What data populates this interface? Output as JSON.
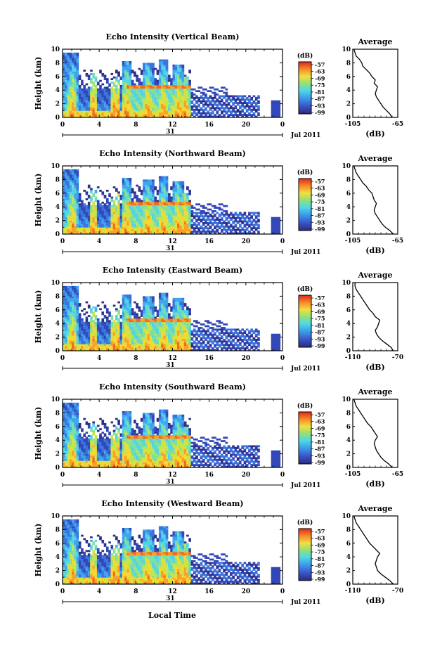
{
  "figure": {
    "time_axis_label": "Local Time",
    "date_day_label": "31",
    "month_year_label": "Jul 2011"
  },
  "chart_data": [
    {
      "type": "heatmap",
      "title": "Echo Intensity (Vertical Beam)",
      "ylabel": "Height (km)",
      "x_ticks": [
        "0",
        "4",
        "8",
        "12",
        "16",
        "20",
        "0"
      ],
      "y_ticks": [
        "0",
        "2",
        "4",
        "6",
        "8",
        "10"
      ],
      "xlim": [
        0,
        24
      ],
      "ylim": [
        0,
        10
      ],
      "colorbar": {
        "unit": "(dB)",
        "ticks": [
          "-57",
          "-63",
          "-69",
          "-75",
          "-81",
          "-87",
          "-93",
          "-99"
        ]
      },
      "profile": {
        "title": "Average",
        "xlabel": "(dB)",
        "x_ticks": [
          "-105",
          "-65"
        ],
        "xlim": [
          -105,
          -65
        ],
        "heights": [
          0,
          0.5,
          1,
          1.5,
          2,
          2.5,
          3,
          3.5,
          4,
          4.5,
          5,
          5.5,
          6,
          6.5,
          7,
          7.5,
          8,
          8.5,
          9,
          9.5,
          10
        ],
        "values": [
          -70,
          -72,
          -75,
          -78,
          -80,
          -82,
          -84,
          -85,
          -84,
          -83,
          -86,
          -85,
          -88,
          -90,
          -93,
          -96,
          -97,
          -99,
          -102,
          -103,
          -104
        ]
      }
    },
    {
      "type": "heatmap",
      "title": "Echo Intensity (Northward Beam)",
      "ylabel": "Height (km)",
      "x_ticks": [
        "0",
        "4",
        "8",
        "12",
        "16",
        "20",
        "0"
      ],
      "y_ticks": [
        "0",
        "2",
        "4",
        "6",
        "8",
        "10"
      ],
      "xlim": [
        0,
        24
      ],
      "ylim": [
        0,
        10
      ],
      "colorbar": {
        "unit": "(dB)",
        "ticks": [
          "-57",
          "-63",
          "-69",
          "-75",
          "-81",
          "-87",
          "-93",
          "-99"
        ]
      },
      "profile": {
        "title": "Average",
        "xlabel": "(dB)",
        "x_ticks": [
          "-105",
          "-65"
        ],
        "xlim": [
          -105,
          -65
        ],
        "heights": [
          0,
          0.5,
          1,
          1.5,
          2,
          2.5,
          3,
          3.5,
          4,
          4.5,
          5,
          5.5,
          6,
          6.5,
          7,
          7.5,
          8,
          8.5,
          9,
          9.5,
          10
        ],
        "values": [
          -69,
          -72,
          -76,
          -79,
          -81,
          -83,
          -85,
          -86,
          -85,
          -84,
          -86,
          -87,
          -88,
          -91,
          -93,
          -96,
          -98,
          -100,
          -102,
          -103,
          -104
        ]
      }
    },
    {
      "type": "heatmap",
      "title": "Echo Intensity (Eastward Beam)",
      "ylabel": "Height (km)",
      "x_ticks": [
        "0",
        "4",
        "8",
        "12",
        "16",
        "20",
        "0"
      ],
      "y_ticks": [
        "0",
        "2",
        "4",
        "6",
        "8",
        "10"
      ],
      "xlim": [
        0,
        24
      ],
      "ylim": [
        0,
        10
      ],
      "colorbar": {
        "unit": "(dB)",
        "ticks": [
          "-57",
          "-63",
          "-69",
          "-75",
          "-81",
          "-87",
          "-93",
          "-99"
        ]
      },
      "profile": {
        "title": "Average",
        "xlabel": "(dB)",
        "x_ticks": [
          "-110",
          "-70"
        ],
        "xlim": [
          -110,
          -70
        ],
        "heights": [
          0,
          0.5,
          1,
          1.5,
          2,
          2.5,
          3,
          3.5,
          4,
          4.5,
          5,
          5.5,
          6,
          6.5,
          7,
          7.5,
          8,
          8.5,
          9,
          9.5,
          10
        ],
        "values": [
          -74,
          -76,
          -80,
          -84,
          -87,
          -89,
          -90,
          -88,
          -87,
          -86,
          -90,
          -92,
          -95,
          -97,
          -99,
          -101,
          -103,
          -105,
          -107,
          -108,
          -108
        ]
      }
    },
    {
      "type": "heatmap",
      "title": "Echo Intensity (Southward Beam)",
      "ylabel": "Height (km)",
      "x_ticks": [
        "0",
        "4",
        "8",
        "12",
        "16",
        "20",
        "0"
      ],
      "y_ticks": [
        "0",
        "2",
        "4",
        "6",
        "8",
        "10"
      ],
      "xlim": [
        0,
        24
      ],
      "ylim": [
        0,
        10
      ],
      "colorbar": {
        "unit": "(dB)",
        "ticks": [
          "-57",
          "-63",
          "-69",
          "-75",
          "-81",
          "-87",
          "-93",
          "-99"
        ]
      },
      "profile": {
        "title": "Average",
        "xlabel": "(dB)",
        "x_ticks": [
          "-105",
          "-65"
        ],
        "xlim": [
          -105,
          -65
        ],
        "heights": [
          0,
          0.5,
          1,
          1.5,
          2,
          2.5,
          3,
          3.5,
          4,
          4.5,
          5,
          5.5,
          6,
          6.5,
          7,
          7.5,
          8,
          8.5,
          9,
          9.5,
          10
        ],
        "values": [
          -70,
          -73,
          -77,
          -80,
          -82,
          -84,
          -85,
          -86,
          -85,
          -83,
          -85,
          -87,
          -89,
          -92,
          -94,
          -96,
          -98,
          -100,
          -102,
          -103,
          -104
        ]
      }
    },
    {
      "type": "heatmap",
      "title": "Echo Intensity (Westward Beam)",
      "ylabel": "Height (km)",
      "x_ticks": [
        "0",
        "4",
        "8",
        "12",
        "16",
        "20",
        "0"
      ],
      "y_ticks": [
        "0",
        "2",
        "4",
        "6",
        "8",
        "10"
      ],
      "xlim": [
        0,
        24
      ],
      "ylim": [
        0,
        10
      ],
      "colorbar": {
        "unit": "(dB)",
        "ticks": [
          "-57",
          "-63",
          "-69",
          "-75",
          "-81",
          "-87",
          "-93",
          "-99"
        ]
      },
      "profile": {
        "title": "Average",
        "xlabel": "(dB)",
        "x_ticks": [
          "-110",
          "-70"
        ],
        "xlim": [
          -110,
          -70
        ],
        "heights": [
          0,
          0.5,
          1,
          1.5,
          2,
          2.5,
          3,
          3.5,
          4,
          4.5,
          5,
          5.5,
          6,
          6.5,
          7,
          7.5,
          8,
          8.5,
          9,
          9.5,
          10
        ],
        "values": [
          -74,
          -77,
          -81,
          -85,
          -88,
          -89,
          -90,
          -89,
          -88,
          -86,
          -89,
          -92,
          -95,
          -97,
          -99,
          -101,
          -103,
          -105,
          -107,
          -108,
          -109
        ]
      }
    }
  ]
}
